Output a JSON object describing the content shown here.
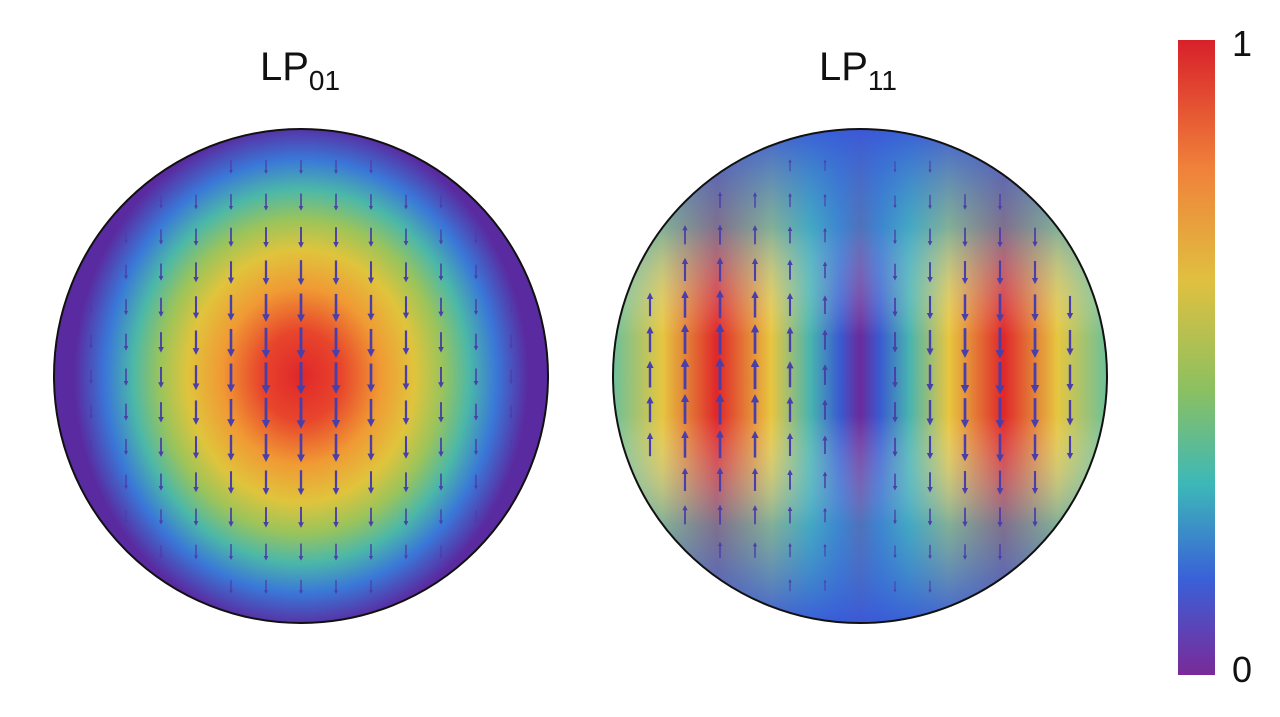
{
  "panels": [
    {
      "title": "LP",
      "subscript": "01"
    },
    {
      "title": "LP",
      "subscript": "11"
    }
  ],
  "colorbar": {
    "max": "1",
    "min": "0"
  }
}
